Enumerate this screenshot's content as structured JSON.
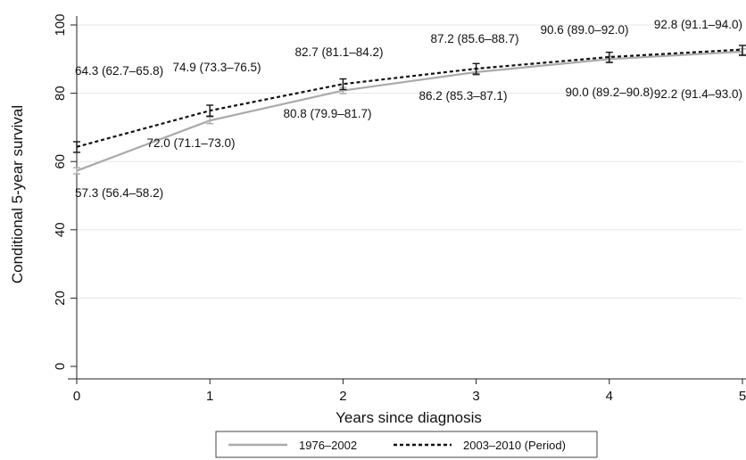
{
  "chart_data": {
    "type": "line",
    "title": "",
    "xlabel": "Years since diagnosis",
    "ylabel": "Conditional 5-year survival",
    "x": [
      0,
      1,
      2,
      3,
      4,
      5
    ],
    "xlim": [
      0,
      5
    ],
    "ylim": [
      0,
      100
    ],
    "x_ticks": [
      "0",
      "1",
      "2",
      "3",
      "4",
      "5"
    ],
    "y_ticks": [
      "0",
      "20",
      "40",
      "60",
      "80",
      "100"
    ],
    "grid": "horizontal",
    "legend_position": "bottom",
    "series": [
      {
        "name": "1976–2002",
        "style": "solid",
        "color": "#aaaaaa",
        "values": [
          57.3,
          72.0,
          80.8,
          86.2,
          90.0,
          92.2
        ],
        "ci_lower": [
          56.4,
          71.1,
          79.9,
          85.3,
          89.2,
          91.4
        ],
        "ci_upper": [
          58.2,
          73.0,
          81.7,
          87.1,
          90.8,
          93.0
        ],
        "labels": [
          "57.3 (56.4–58.2)",
          "72.0 (71.1–73.0)",
          "80.8 (79.9–81.7)",
          "86.2 (85.3–87.1)",
          "90.0 (89.2–90.8)",
          "92.2 (91.4–93.0)"
        ]
      },
      {
        "name": "2003–2010 (Period)",
        "style": "dashed",
        "color": "#111111",
        "values": [
          64.3,
          74.9,
          82.7,
          87.2,
          90.6,
          92.8
        ],
        "ci_lower": [
          62.7,
          73.3,
          81.1,
          85.6,
          89.0,
          91.1
        ],
        "ci_upper": [
          65.8,
          76.5,
          84.2,
          88.7,
          92.0,
          94.0
        ],
        "labels": [
          "64.3 (62.7–65.8)",
          "74.9 (73.3–76.5)",
          "82.7 (81.1–84.2)",
          "87.2 (85.6–88.7)",
          "90.6 (89.0–92.0)",
          "92.8 (91.1–94.0)"
        ]
      }
    ]
  }
}
